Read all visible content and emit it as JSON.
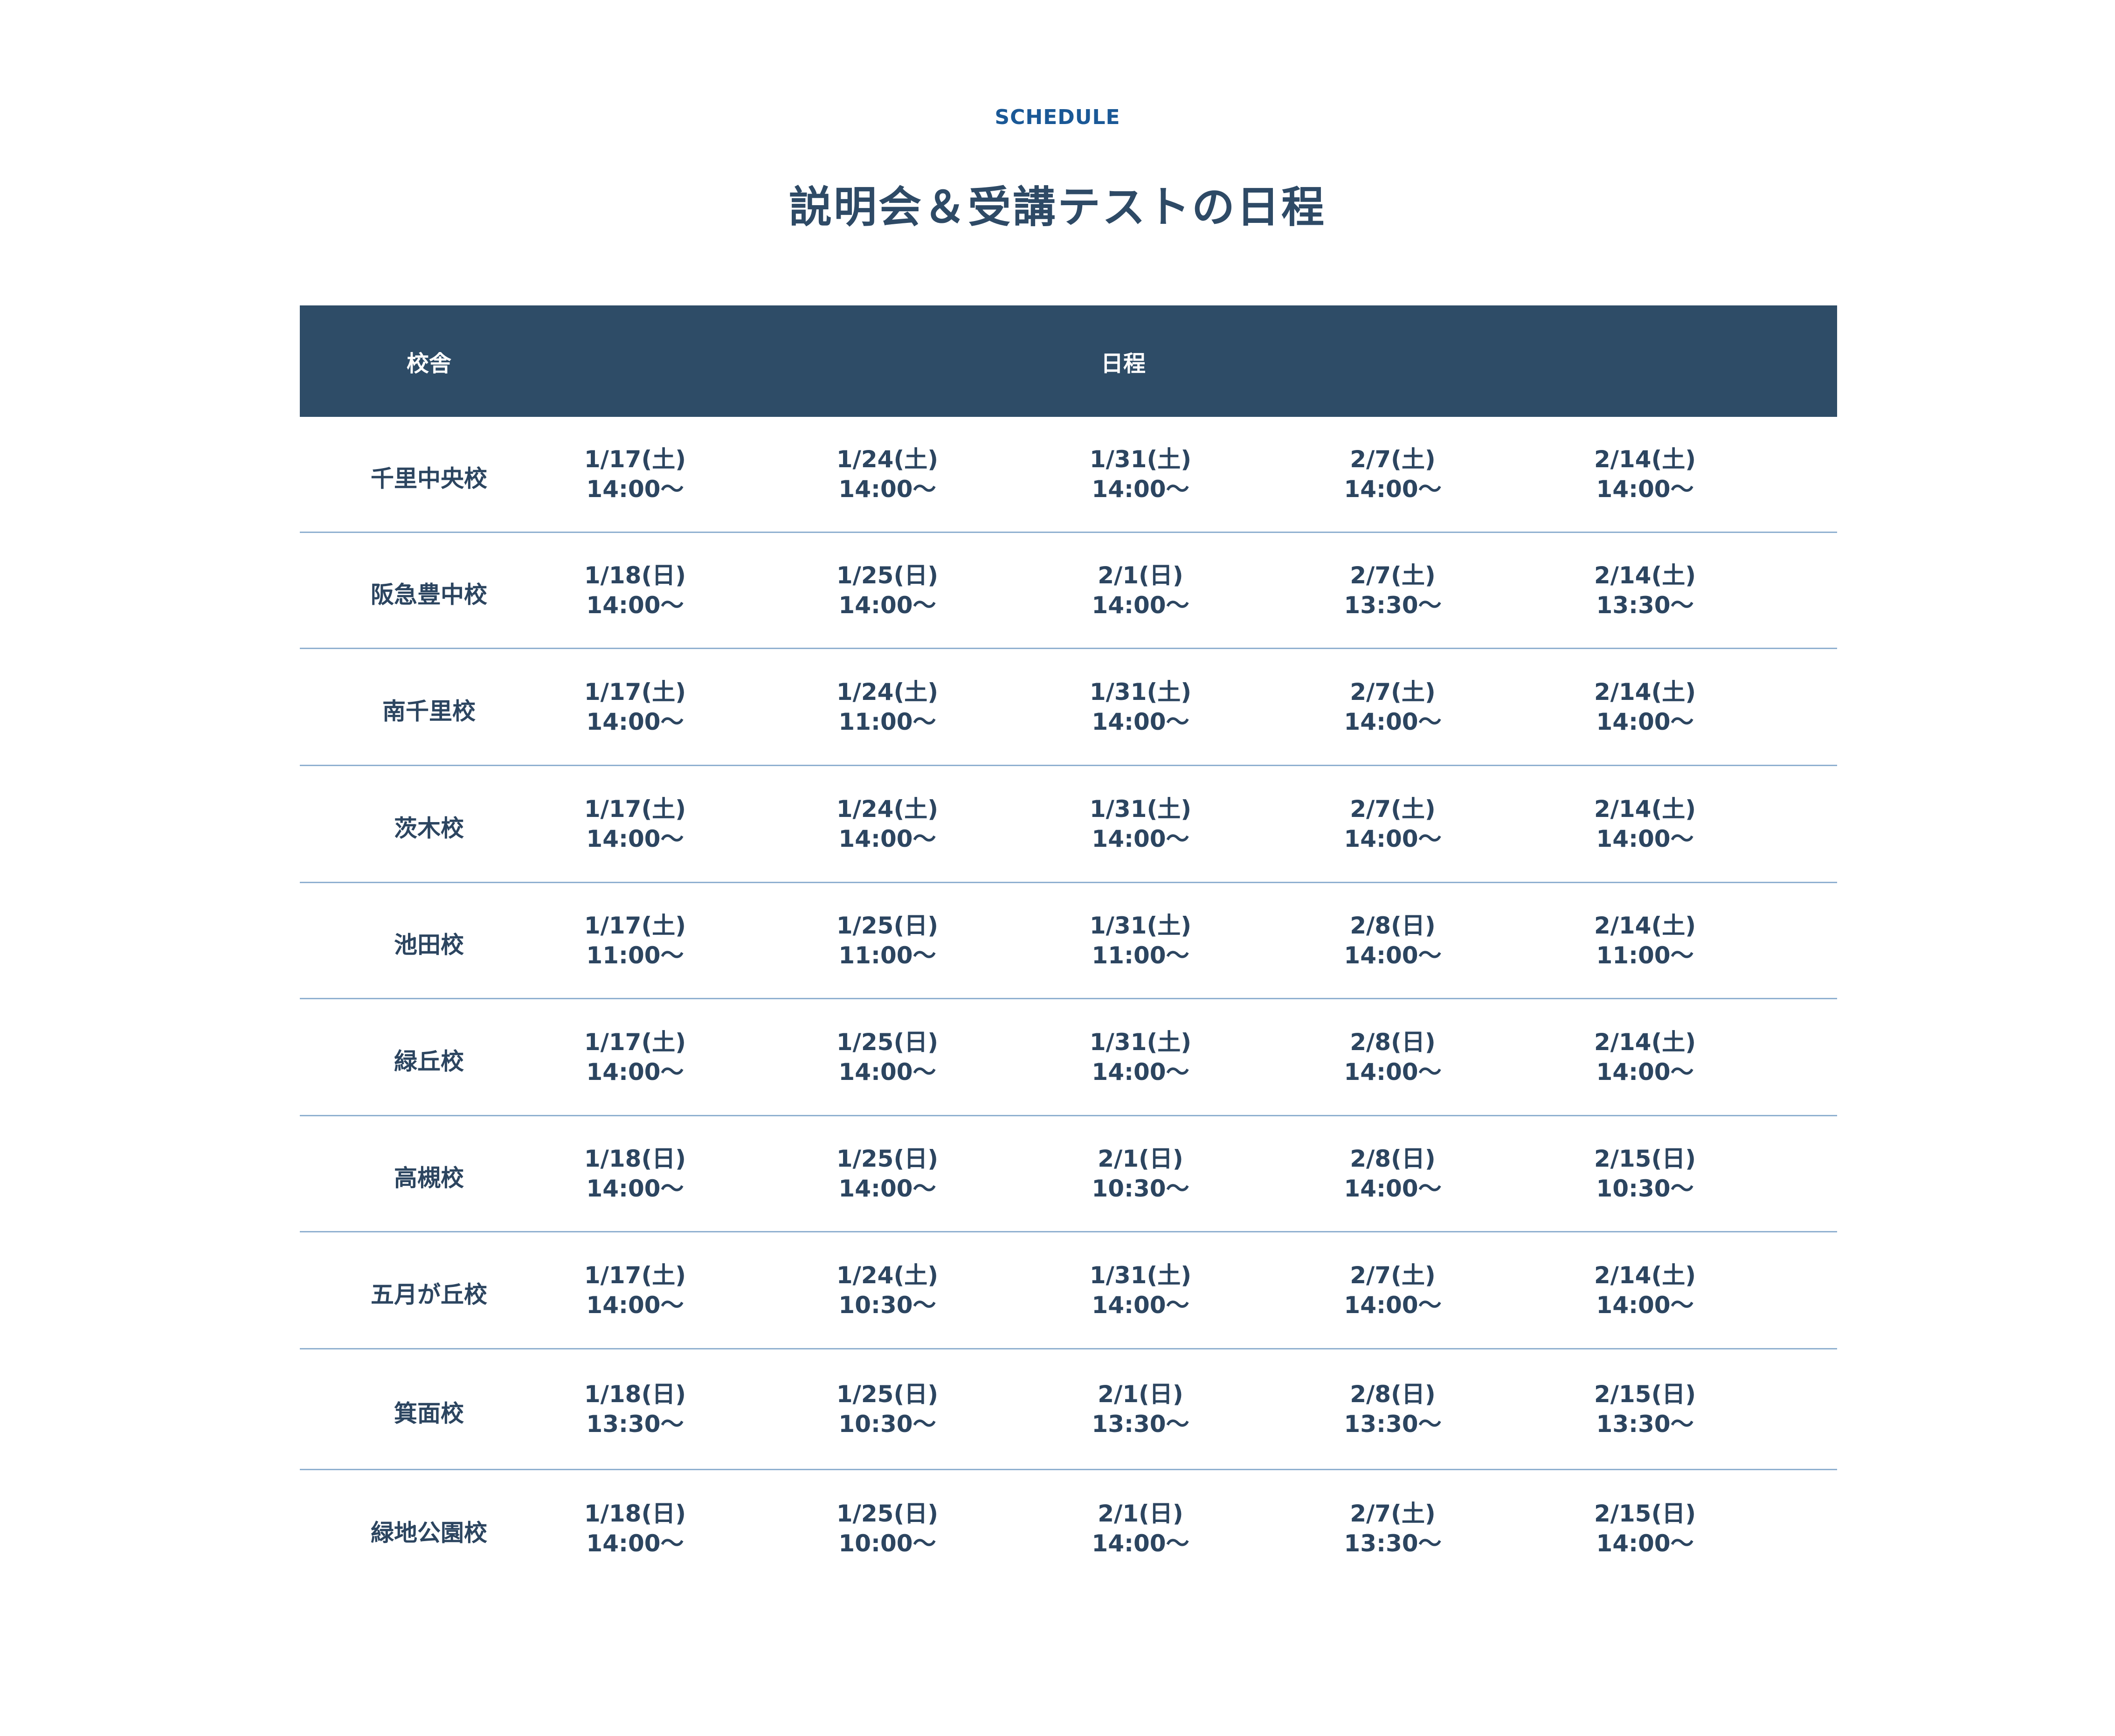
{
  "eyebrow": "SCHEDULE",
  "title": "説明会＆受講テストの日程",
  "table": {
    "headers": {
      "campus": "校舎",
      "schedule": "日程"
    },
    "rows": [
      {
        "campus": "千里中央校",
        "slots": [
          [
            "1/17(土)",
            "14:00〜"
          ],
          [
            "1/24(土)",
            "14:00〜"
          ],
          [
            "1/31(土)",
            "14:00〜"
          ],
          [
            "2/7(土)",
            "14:00〜"
          ],
          [
            "2/14(土)",
            "14:00〜"
          ]
        ]
      },
      {
        "campus": "阪急豊中校",
        "slots": [
          [
            "1/18(日)",
            "14:00〜"
          ],
          [
            "1/25(日)",
            "14:00〜"
          ],
          [
            "2/1(日)",
            "14:00〜"
          ],
          [
            "2/7(土)",
            "13:30〜"
          ],
          [
            "2/14(土)",
            "13:30〜"
          ]
        ]
      },
      {
        "campus": "南千里校",
        "slots": [
          [
            "1/17(土)",
            "14:00〜"
          ],
          [
            "1/24(土)",
            "11:00〜"
          ],
          [
            "1/31(土)",
            "14:00〜"
          ],
          [
            "2/7(土)",
            "14:00〜"
          ],
          [
            "2/14(土)",
            "14:00〜"
          ]
        ]
      },
      {
        "campus": "茨木校",
        "slots": [
          [
            "1/17(土)",
            "14:00〜"
          ],
          [
            "1/24(土)",
            "14:00〜"
          ],
          [
            "1/31(土)",
            "14:00〜"
          ],
          [
            "2/7(土)",
            "14:00〜"
          ],
          [
            "2/14(土)",
            "14:00〜"
          ]
        ]
      },
      {
        "campus": "池田校",
        "slots": [
          [
            "1/17(土)",
            "11:00〜"
          ],
          [
            "1/25(日)",
            "11:00〜"
          ],
          [
            "1/31(土)",
            "11:00〜"
          ],
          [
            "2/8(日)",
            "14:00〜"
          ],
          [
            "2/14(土)",
            "11:00〜"
          ]
        ]
      },
      {
        "campus": "緑丘校",
        "slots": [
          [
            "1/17(土)",
            "14:00〜"
          ],
          [
            "1/25(日)",
            "14:00〜"
          ],
          [
            "1/31(土)",
            "14:00〜"
          ],
          [
            "2/8(日)",
            "14:00〜"
          ],
          [
            "2/14(土)",
            "14:00〜"
          ]
        ]
      },
      {
        "campus": "高槻校",
        "slots": [
          [
            "1/18(日)",
            "14:00〜"
          ],
          [
            "1/25(日)",
            "14:00〜"
          ],
          [
            "2/1(日)",
            "10:30〜"
          ],
          [
            "2/8(日)",
            "14:00〜"
          ],
          [
            "2/15(日)",
            "10:30〜"
          ]
        ]
      },
      {
        "campus": "五月が丘校",
        "slots": [
          [
            "1/17(土)",
            "14:00〜"
          ],
          [
            "1/24(土)",
            "10:30〜"
          ],
          [
            "1/31(土)",
            "14:00〜"
          ],
          [
            "2/7(土)",
            "14:00〜"
          ],
          [
            "2/14(土)",
            "14:00〜"
          ]
        ]
      },
      {
        "campus": "箕面校",
        "slots": [
          [
            "1/18(日)",
            "13:30〜"
          ],
          [
            "1/25(日)",
            "10:30〜"
          ],
          [
            "2/1(日)",
            "13:30〜"
          ],
          [
            "2/8(日)",
            "13:30〜"
          ],
          [
            "2/15(日)",
            "13:30〜"
          ]
        ]
      },
      {
        "campus": "緑地公園校",
        "slots": [
          [
            "1/18(日)",
            "14:00〜"
          ],
          [
            "1/25(日)",
            "10:00〜"
          ],
          [
            "2/1(日)",
            "14:00〜"
          ],
          [
            "2/7(土)",
            "13:30〜"
          ],
          [
            "2/15(日)",
            "14:00〜"
          ]
        ]
      }
    ]
  },
  "colors": {
    "header_bg": "#2e4c67",
    "text": "#2c4560",
    "accent": "#1a5896",
    "divider": "#8fb0d0"
  }
}
